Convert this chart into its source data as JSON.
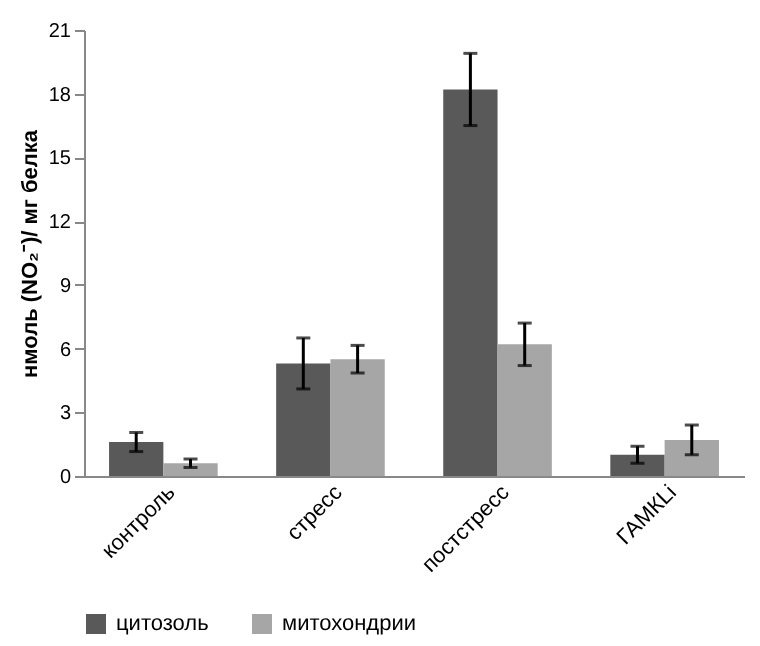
{
  "chart_data": {
    "type": "bar",
    "ylabel": "нмоль (NO₂⁻)/ мг белка",
    "categories": [
      "контроль",
      "стресс",
      "постстресс",
      "ГАМКLi"
    ],
    "series": [
      {
        "name": "цитозоль",
        "color": "#595959",
        "values": [
          1.6,
          5.3,
          18.2,
          1.0
        ],
        "errors": [
          0.45,
          1.2,
          1.7,
          0.4
        ]
      },
      {
        "name": "митохондрии",
        "color": "#a6a6a6",
        "values": [
          0.6,
          5.5,
          6.2,
          1.7
        ],
        "errors": [
          0.2,
          0.65,
          1.0,
          0.7
        ]
      }
    ],
    "ylim": [
      0,
      21
    ],
    "yticks": [
      0,
      3,
      6,
      9,
      12,
      15,
      18,
      21
    ],
    "grid": false,
    "legend": "bottom"
  }
}
